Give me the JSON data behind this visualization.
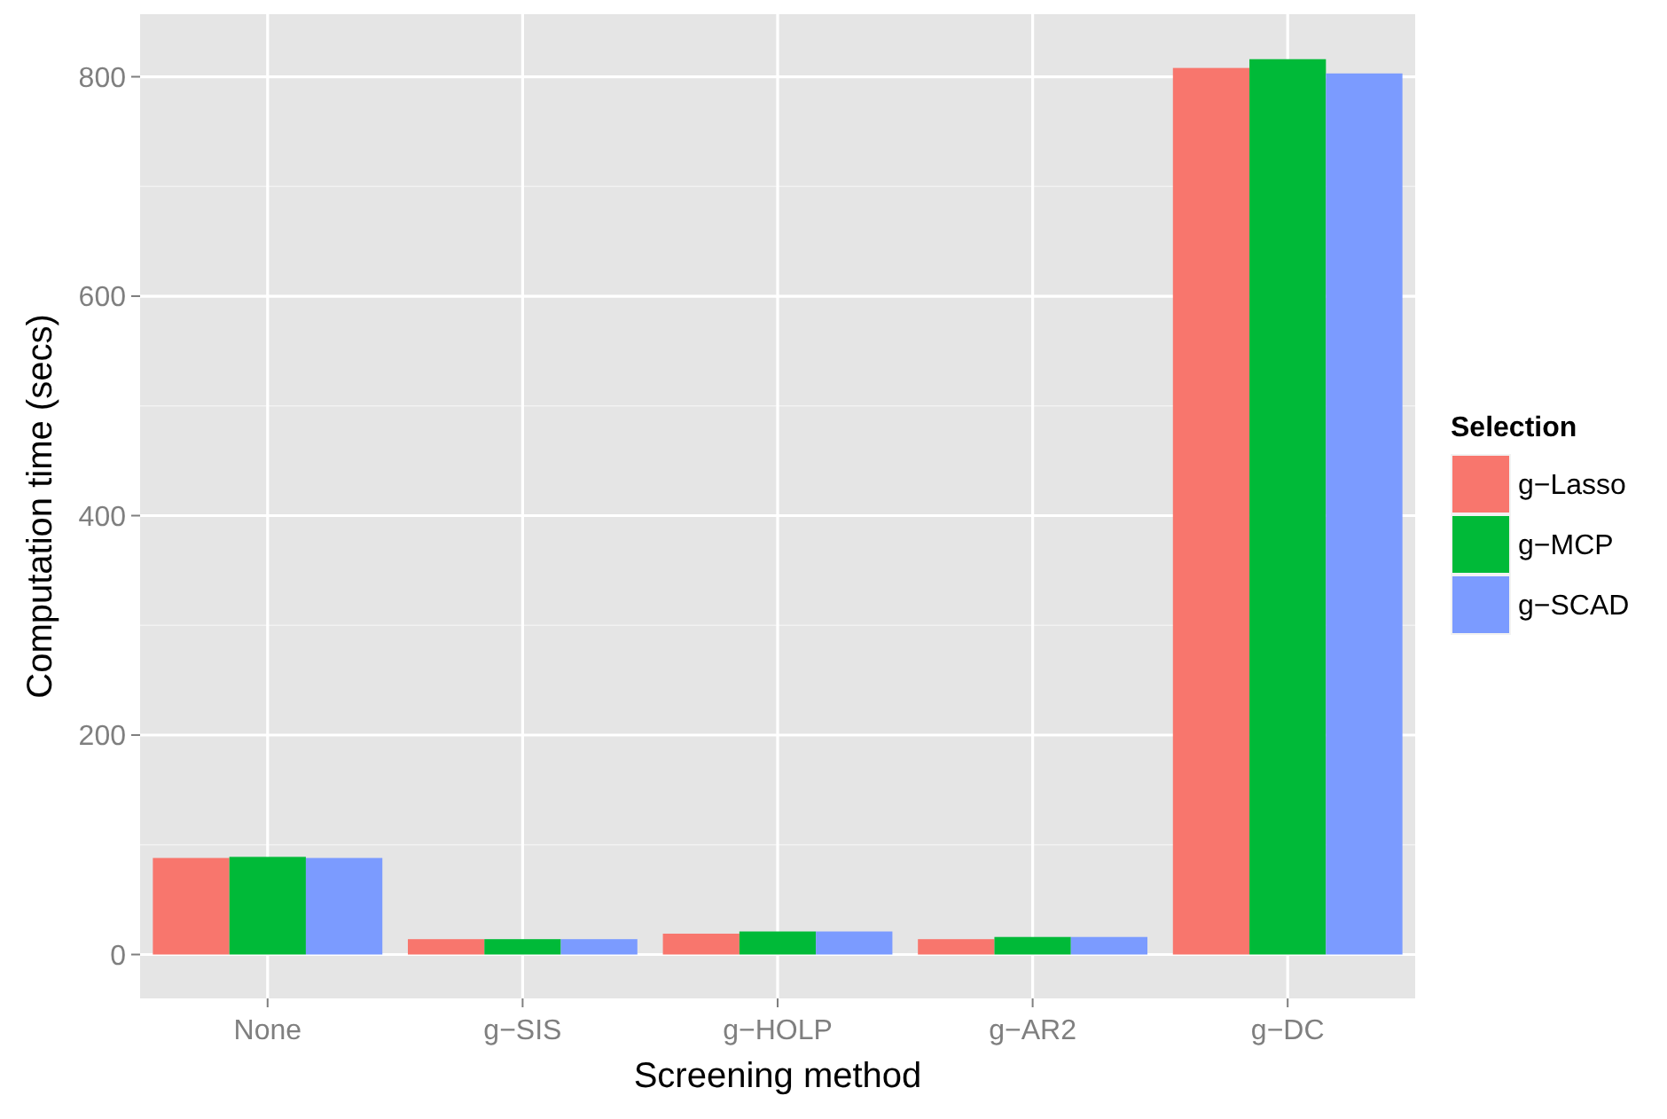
{
  "chart_data": {
    "type": "bar",
    "xlabel": "Screening method",
    "ylabel": "Computation time (secs)",
    "legend_title": "Selection",
    "legend": "right",
    "grid": true,
    "categories": [
      "None",
      "g−SIS",
      "g−HOLP",
      "g−AR2",
      "g−DC"
    ],
    "ylim": [
      -40,
      857
    ],
    "yticks": [
      0,
      200,
      400,
      600,
      800
    ],
    "series": [
      {
        "name": "g−Lasso",
        "color": "#f8766d",
        "values": [
          88,
          14,
          19,
          14,
          808
        ]
      },
      {
        "name": "g−MCP",
        "color": "#00ba38",
        "values": [
          89,
          14,
          21,
          16,
          816
        ]
      },
      {
        "name": "g−SCAD",
        "color": "#7b9bff",
        "values": [
          88,
          14,
          21,
          16,
          803
        ]
      }
    ]
  }
}
